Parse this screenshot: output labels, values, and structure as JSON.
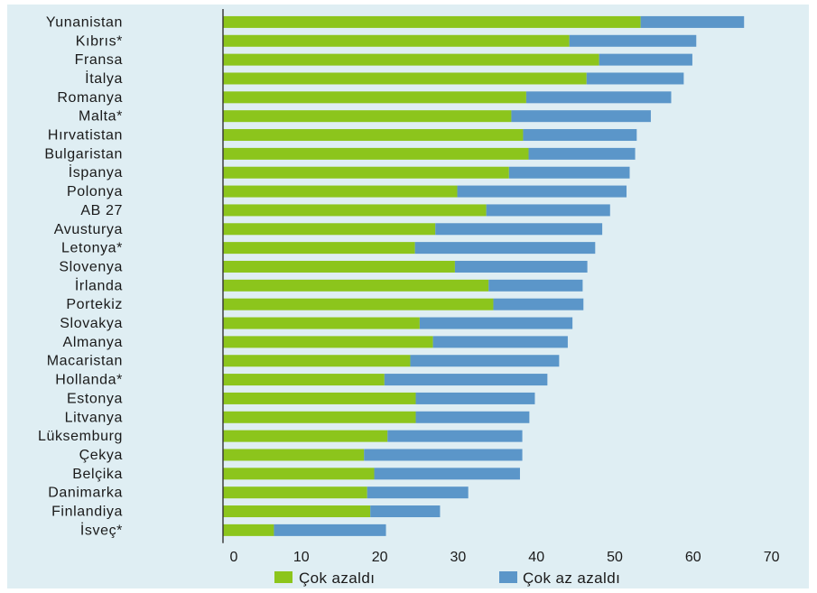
{
  "chart_data": {
    "type": "bar",
    "stacked": true,
    "orientation": "horizontal",
    "categories": [
      "Yunanistan",
      "Kıbrıs*",
      "Fransa",
      "İtalya",
      "Romanya",
      "Malta*",
      "Hırvatistan",
      "Bulgaristan",
      "İspanya",
      "Polonya",
      "AB 27",
      "Avusturya",
      "Letonya*",
      "Slovenya",
      "İrlanda",
      "Portekiz",
      "Slovakya",
      "Almanya",
      "Macaristan",
      "Hollanda*",
      "Estonya",
      "Litvanya",
      "Lüksemburg",
      "Çekya",
      "Belçika",
      "Danimarka",
      "Finlandiya",
      "İsveç*"
    ],
    "series": [
      {
        "name": "Çok azaldı",
        "color": "#8cc51c",
        "values": [
          53.3,
          44.2,
          48.0,
          46.4,
          38.7,
          36.8,
          38.3,
          39.0,
          36.5,
          29.9,
          33.6,
          27.1,
          24.5,
          29.6,
          33.9,
          34.5,
          25.1,
          26.8,
          23.9,
          20.6,
          24.6,
          24.6,
          21.0,
          18.0,
          19.3,
          18.4,
          18.8,
          6.5
        ]
      },
      {
        "name": "Çok az azaldı",
        "color": "#5b96c9",
        "values": [
          13.2,
          16.2,
          11.9,
          12.4,
          18.5,
          17.8,
          14.5,
          13.6,
          15.4,
          21.6,
          15.8,
          21.3,
          23.0,
          16.9,
          12.0,
          11.5,
          19.5,
          17.2,
          19.0,
          20.8,
          15.2,
          14.5,
          17.2,
          20.2,
          18.6,
          12.9,
          8.9,
          14.3
        ]
      }
    ],
    "x_ticks": [
      "0",
      "10",
      "20",
      "30",
      "40",
      "50",
      "60",
      "70"
    ],
    "xlim": [
      0,
      70
    ],
    "grid": false,
    "legend_position": "bottom"
  }
}
